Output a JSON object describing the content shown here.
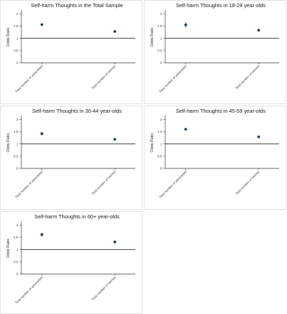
{
  "chart_data": [
    {
      "type": "scatter",
      "title": "Self-harm Thoughts in the Total Sample",
      "ylabel": "Odds Ratio",
      "categories": [
        "Total number of adversities",
        "Total number of worries"
      ],
      "yticks": [
        0,
        0.5,
        1,
        1.5,
        2
      ],
      "ylim": [
        0,
        2.1
      ],
      "reference_line": 1,
      "series": [
        {
          "values": [
            1.56,
            1.28
          ],
          "ci_low": [
            1.53,
            1.26
          ],
          "ci_high": [
            1.59,
            1.3
          ]
        }
      ],
      "grid": false
    },
    {
      "type": "scatter",
      "title": "Self-harm Thoughts in 18-29 year-olds",
      "ylabel": "Odds Ratio",
      "categories": [
        "Total number of adversities",
        "Total number of worries"
      ],
      "yticks": [
        0,
        0.5,
        1,
        1.5,
        2
      ],
      "ylim": [
        0,
        2.1
      ],
      "reference_line": 1,
      "series": [
        {
          "values": [
            1.55,
            1.33
          ],
          "ci_low": [
            1.43,
            1.3
          ],
          "ci_high": [
            1.67,
            1.36
          ]
        }
      ],
      "grid": false
    },
    {
      "type": "scatter",
      "title": "Self-harm Thoughts in 30-44 year-olds",
      "ylabel": "Odds Ratio",
      "categories": [
        "Total number of adversities",
        "Total number of worries"
      ],
      "yticks": [
        0,
        0.5,
        1,
        1.5,
        2
      ],
      "ylim": [
        0,
        2.1
      ],
      "reference_line": 1,
      "series": [
        {
          "values": [
            1.42,
            1.19
          ],
          "ci_low": [
            1.35,
            1.16
          ],
          "ci_high": [
            1.5,
            1.22
          ]
        }
      ],
      "grid": false
    },
    {
      "type": "scatter",
      "title": "Self-harm Thoughts in 45-59 year-olds",
      "ylabel": "Odds Ratio",
      "categories": [
        "Total number of adversities",
        "Total number of worries"
      ],
      "yticks": [
        0,
        0.5,
        1,
        1.5,
        2
      ],
      "ylim": [
        0,
        2.1
      ],
      "reference_line": 1,
      "series": [
        {
          "values": [
            1.6,
            1.29
          ],
          "ci_low": [
            1.55,
            1.27
          ],
          "ci_high": [
            1.65,
            1.31
          ]
        }
      ],
      "grid": false
    },
    {
      "type": "scatter",
      "title": "Self-harm Thoughts in 60+ year-olds",
      "ylabel": "Odds Ratio",
      "categories": [
        "Total number of adversities",
        "Total number of worries"
      ],
      "yticks": [
        0,
        0.5,
        1,
        1.5,
        2
      ],
      "ylim": [
        0,
        2.1
      ],
      "reference_line": 1,
      "series": [
        {
          "values": [
            1.61,
            1.31
          ],
          "ci_low": [
            1.53,
            1.28
          ],
          "ci_high": [
            1.69,
            1.34
          ]
        }
      ],
      "grid": false
    }
  ]
}
